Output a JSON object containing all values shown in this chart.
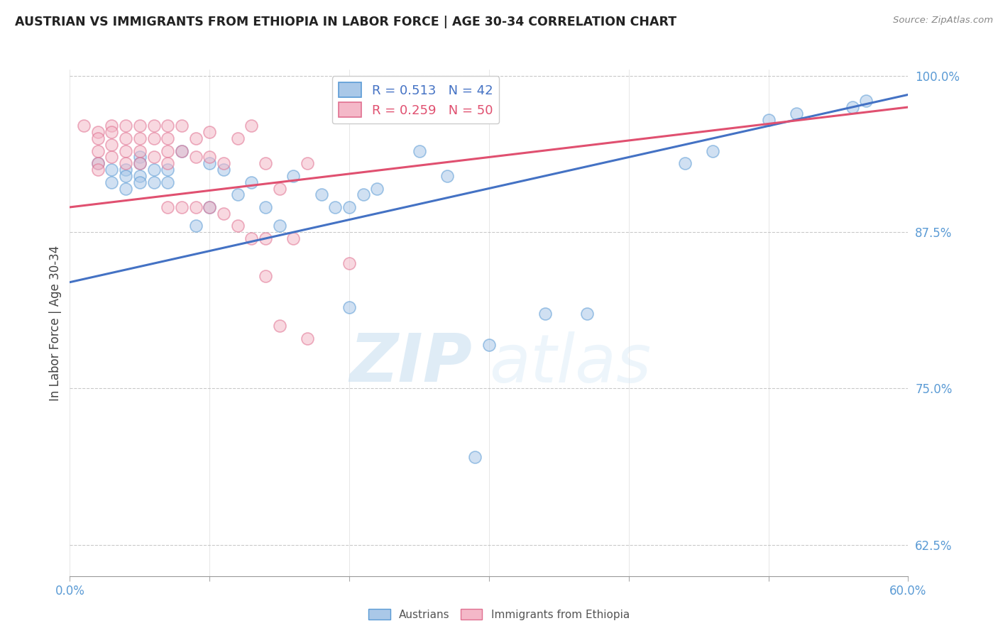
{
  "title": "AUSTRIAN VS IMMIGRANTS FROM ETHIOPIA IN LABOR FORCE | AGE 30-34 CORRELATION CHART",
  "source": "Source: ZipAtlas.com",
  "ylabel": "In Labor Force | Age 30-34",
  "xlim": [
    0.0,
    0.6
  ],
  "ylim": [
    0.6,
    1.005
  ],
  "xticks": [
    0.0,
    0.1,
    0.2,
    0.3,
    0.4,
    0.5,
    0.6
  ],
  "xticklabels": [
    "0.0%",
    "",
    "",
    "",
    "",
    "",
    "60.0%"
  ],
  "yticks": [
    0.625,
    0.75,
    0.875,
    1.0
  ],
  "yticklabels": [
    "62.5%",
    "75.0%",
    "87.5%",
    "100.0%"
  ],
  "legend_blue_R": "R = 0.513",
  "legend_blue_N": "N = 42",
  "legend_pink_R": "R = 0.259",
  "legend_pink_N": "N = 50",
  "blue_fill": "#aac8e8",
  "blue_edge": "#5b9bd5",
  "pink_fill": "#f4b8c8",
  "pink_edge": "#e07090",
  "blue_line": "#4472c4",
  "pink_line": "#e05070",
  "watermark_zip": "ZIP",
  "watermark_atlas": "atlas",
  "background_color": "#ffffff",
  "grid_color": "#bbbbbb",
  "title_color": "#222222",
  "axis_label_color": "#444444",
  "tick_color": "#5b9bd5",
  "watermark_color": "#d0e8f8",
  "circle_size": 150,
  "circle_alpha": 0.55,
  "circle_linewidth": 1.2,
  "blue_trend_x": [
    0.0,
    0.6
  ],
  "blue_trend_y": [
    0.835,
    0.985
  ],
  "pink_trend_x": [
    0.0,
    0.6
  ],
  "pink_trend_y": [
    0.895,
    0.975
  ],
  "austrians_x": [
    0.02,
    0.03,
    0.03,
    0.04,
    0.04,
    0.04,
    0.05,
    0.05,
    0.05,
    0.05,
    0.06,
    0.06,
    0.07,
    0.07,
    0.08,
    0.09,
    0.1,
    0.1,
    0.11,
    0.12,
    0.13,
    0.14,
    0.18,
    0.19,
    0.2,
    0.22,
    0.25,
    0.27,
    0.29,
    0.3,
    0.34,
    0.37,
    0.44,
    0.46,
    0.5,
    0.52,
    0.56,
    0.57,
    0.15,
    0.16,
    0.2,
    0.21
  ],
  "austrians_y": [
    0.93,
    0.925,
    0.915,
    0.925,
    0.92,
    0.91,
    0.935,
    0.93,
    0.92,
    0.915,
    0.925,
    0.915,
    0.925,
    0.915,
    0.94,
    0.88,
    0.93,
    0.895,
    0.925,
    0.905,
    0.915,
    0.895,
    0.905,
    0.895,
    0.815,
    0.91,
    0.94,
    0.92,
    0.695,
    0.785,
    0.81,
    0.81,
    0.93,
    0.94,
    0.965,
    0.97,
    0.975,
    0.98,
    0.88,
    0.92,
    0.895,
    0.905
  ],
  "ethiopia_x": [
    0.01,
    0.02,
    0.02,
    0.02,
    0.02,
    0.02,
    0.03,
    0.03,
    0.03,
    0.03,
    0.04,
    0.04,
    0.04,
    0.04,
    0.05,
    0.05,
    0.05,
    0.05,
    0.06,
    0.06,
    0.06,
    0.07,
    0.07,
    0.07,
    0.07,
    0.08,
    0.08,
    0.09,
    0.09,
    0.1,
    0.1,
    0.11,
    0.12,
    0.13,
    0.14,
    0.15,
    0.16,
    0.17,
    0.07,
    0.08,
    0.09,
    0.1,
    0.11,
    0.12,
    0.13,
    0.14,
    0.14,
    0.15,
    0.17,
    0.2
  ],
  "ethiopia_y": [
    0.96,
    0.955,
    0.95,
    0.94,
    0.93,
    0.925,
    0.96,
    0.955,
    0.945,
    0.935,
    0.96,
    0.95,
    0.94,
    0.93,
    0.96,
    0.95,
    0.94,
    0.93,
    0.96,
    0.95,
    0.935,
    0.96,
    0.95,
    0.94,
    0.93,
    0.96,
    0.94,
    0.95,
    0.935,
    0.955,
    0.935,
    0.93,
    0.95,
    0.96,
    0.93,
    0.91,
    0.87,
    0.93,
    0.895,
    0.895,
    0.895,
    0.895,
    0.89,
    0.88,
    0.87,
    0.87,
    0.84,
    0.8,
    0.79,
    0.85
  ]
}
